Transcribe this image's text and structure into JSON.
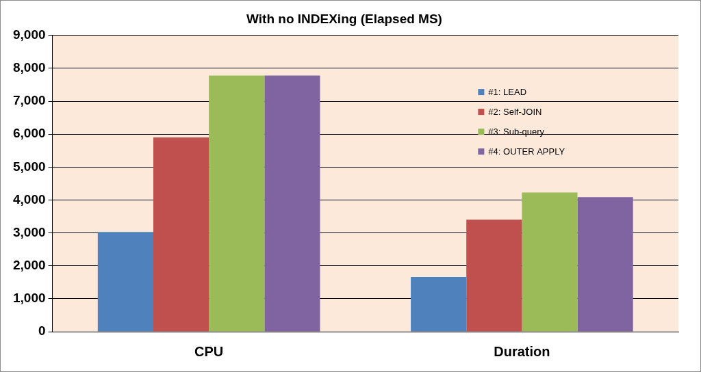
{
  "chart_data": {
    "type": "bar",
    "title": "With no INDEXing (Elapsed MS)",
    "categories": [
      "CPU",
      "Duration"
    ],
    "series": [
      {
        "name": "#1: LEAD",
        "color": "#4f81bd",
        "values": [
          3030,
          1660
        ]
      },
      {
        "name": "#2: Self-JOIN",
        "color": "#c0504d",
        "values": [
          5900,
          3400
        ]
      },
      {
        "name": "#3: Sub-query",
        "color": "#9bbb59",
        "values": [
          7780,
          4230
        ]
      },
      {
        "name": "#4: OUTER APPLY",
        "color": "#8064a2",
        "values": [
          7780,
          4090
        ]
      }
    ],
    "ylim": [
      0,
      9000
    ],
    "yticks": [
      0,
      {
        "value": 1000,
        "label": "1,000"
      },
      {
        "value": 2000,
        "label": "2,000"
      },
      {
        "value": 3000,
        "label": "3,000"
      },
      {
        "value": 4000,
        "label": "4,000"
      },
      {
        "value": 5000,
        "label": "5,000"
      },
      {
        "value": 6000,
        "label": "6,000"
      },
      {
        "value": 7000,
        "label": "7,000"
      },
      {
        "value": 8000,
        "label": "8,000"
      },
      {
        "value": 9000,
        "label": "9,000"
      }
    ],
    "grid": true,
    "legend": "upper right"
  }
}
